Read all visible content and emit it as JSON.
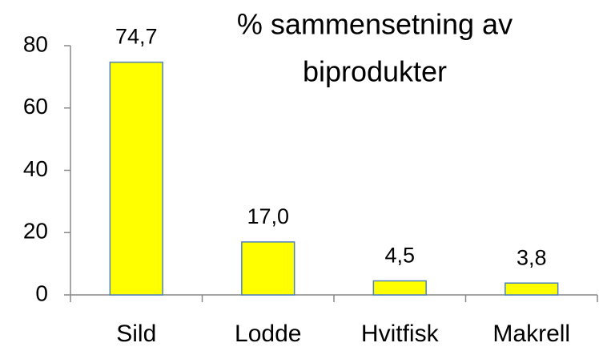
{
  "chart_data": {
    "type": "bar",
    "title": [
      "% sammensetning av",
      "biprodukter"
    ],
    "categories": [
      "Sild",
      "Lodde",
      "Hvitfisk",
      "Makrell"
    ],
    "values": [
      74.7,
      17.0,
      4.5,
      3.8
    ],
    "value_labels": [
      "74,7",
      "17,0",
      "4,5",
      "3,8"
    ],
    "color": "#ffff00",
    "ylim": [
      0,
      80
    ],
    "yticks": [
      0,
      20,
      40,
      60,
      80
    ],
    "grid": false
  }
}
